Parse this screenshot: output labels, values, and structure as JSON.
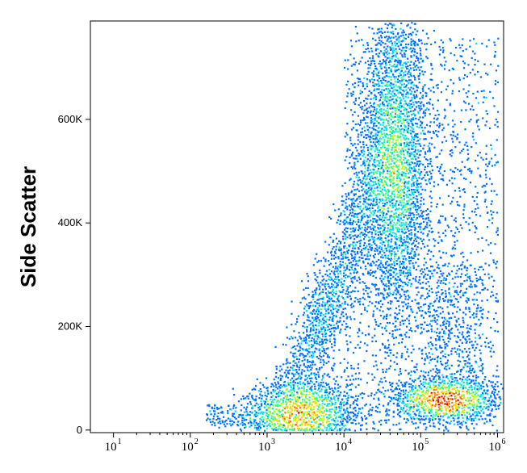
{
  "chart_data": {
    "type": "scatter",
    "subtype": "flow-cytometry density dot plot",
    "ylabel": "Side Scatter",
    "xlabel": "",
    "x_scale": "log",
    "xlim": [
      5,
      1200000
    ],
    "ylim": [
      -5000,
      790000
    ],
    "x_ticks": [
      {
        "value": 10,
        "base": "10",
        "exp": "1"
      },
      {
        "value": 100,
        "base": "10",
        "exp": "2"
      },
      {
        "value": 1000,
        "base": "10",
        "exp": "3"
      },
      {
        "value": 10000,
        "base": "10",
        "exp": "4"
      },
      {
        "value": 100000,
        "base": "10",
        "exp": "5"
      },
      {
        "value": 1000000,
        "base": "10",
        "exp": "6"
      }
    ],
    "y_ticks": [
      {
        "value": 0,
        "label": "0"
      },
      {
        "value": 200000,
        "label": "200K"
      },
      {
        "value": 400000,
        "label": "400K"
      },
      {
        "value": 600000,
        "label": "600K"
      }
    ],
    "populations": [
      {
        "name": "low-fluorescence low-scatter",
        "x_center": 2800,
        "y_center": 35000,
        "x_spread_decades": 0.3,
        "y_spread": 28000,
        "peak": "red"
      },
      {
        "name": "intermediate-fluorescence high-scatter",
        "x_center": 45000,
        "y_center": 520000,
        "x_spread_decades": 0.18,
        "y_spread": 130000,
        "peak": "green"
      },
      {
        "name": "high-fluorescence low-scatter",
        "x_center": 200000,
        "y_center": 60000,
        "x_spread_decades": 0.28,
        "y_spread": 18000,
        "peak": "orange"
      }
    ],
    "grid": false,
    "legend": "none",
    "colormap": [
      "#0000cc",
      "#0070ff",
      "#00d8ff",
      "#30ff90",
      "#c0ff00",
      "#ffd000",
      "#ff7000",
      "#e00000"
    ]
  }
}
